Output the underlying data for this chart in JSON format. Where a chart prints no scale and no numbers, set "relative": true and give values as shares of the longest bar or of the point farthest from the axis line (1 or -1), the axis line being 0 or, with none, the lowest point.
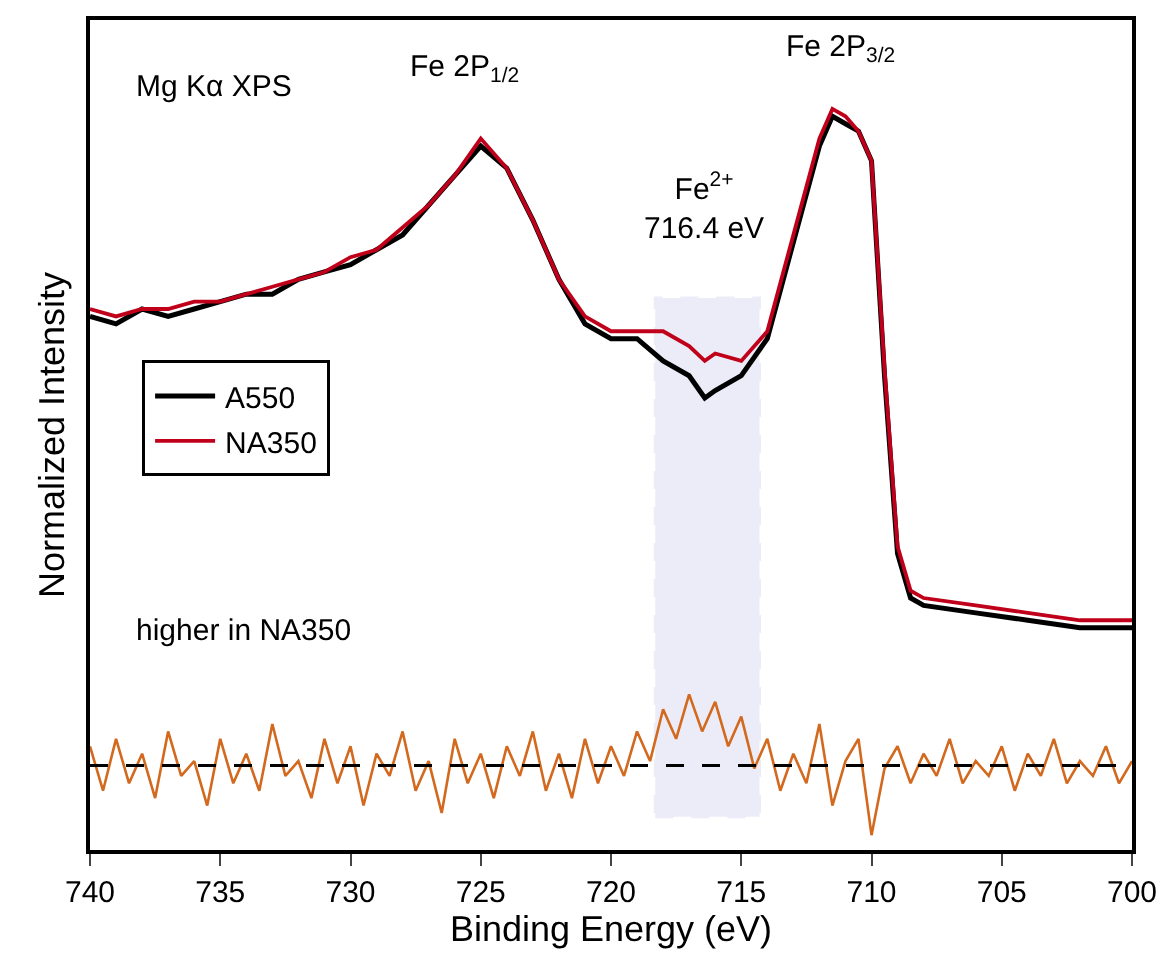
{
  "chart_data": {
    "type": "line",
    "relative": true,
    "xlabel": "Binding Energy (eV)",
    "ylabel": "Normalized Intensity",
    "xlim": [
      740,
      700
    ],
    "xticks": [
      740,
      735,
      730,
      725,
      720,
      715,
      710,
      705,
      700
    ],
    "grid": false,
    "legend": "left",
    "marker": "none",
    "line_style": "solid",
    "annotations": [
      "Mg Kα XPS",
      "Fe 2P$_{1/2}$",
      "Fe 2P$_{3/2}$",
      "Fe$^{2+}$\n716.4 eV",
      "higher in NA350"
    ],
    "ref_lines": [
      {
        "axis": "y",
        "value": 0.114,
        "label": null,
        "color": "#000000",
        "line_style": "dashed"
      }
    ],
    "bands": [
      {
        "axis": "x",
        "from": 718.3,
        "to": 714.3,
        "label": null,
        "color": "#6a6acc"
      }
    ],
    "series": [
      {
        "name": "A550",
        "color": "#000000",
        "x": [
          740,
          739,
          738,
          737,
          736,
          735,
          734,
          733,
          732,
          731,
          730,
          729,
          728,
          727,
          726,
          725,
          724,
          723,
          722,
          721,
          720,
          719,
          718,
          717,
          716.4,
          716,
          715,
          714,
          713,
          712,
          711.5,
          711,
          710.5,
          710,
          709.5,
          709,
          708.5,
          708,
          706,
          704,
          702,
          700
        ],
        "values": [
          0.72,
          0.71,
          0.73,
          0.72,
          0.73,
          0.74,
          0.75,
          0.75,
          0.77,
          0.78,
          0.79,
          0.81,
          0.83,
          0.87,
          0.91,
          0.95,
          0.92,
          0.85,
          0.77,
          0.71,
          0.69,
          0.69,
          0.66,
          0.64,
          0.61,
          0.62,
          0.64,
          0.69,
          0.82,
          0.95,
          0.99,
          0.98,
          0.97,
          0.93,
          0.64,
          0.4,
          0.34,
          0.33,
          0.32,
          0.31,
          0.3,
          0.3
        ]
      },
      {
        "name": "NA350",
        "color": "#c0001a",
        "x": [
          740,
          739,
          738,
          737,
          736,
          735,
          734,
          733,
          732,
          731,
          730,
          729,
          728,
          727,
          726,
          725,
          724,
          723,
          722,
          721,
          720,
          719,
          718,
          717,
          716.4,
          716,
          715,
          714,
          713,
          712,
          711.5,
          711,
          710.5,
          710,
          709.5,
          709,
          708.5,
          708,
          706,
          704,
          702,
          700
        ],
        "values": [
          0.73,
          0.72,
          0.73,
          0.73,
          0.74,
          0.74,
          0.75,
          0.76,
          0.77,
          0.78,
          0.8,
          0.81,
          0.84,
          0.87,
          0.91,
          0.96,
          0.92,
          0.85,
          0.77,
          0.72,
          0.7,
          0.7,
          0.7,
          0.68,
          0.66,
          0.67,
          0.66,
          0.7,
          0.83,
          0.96,
          1.0,
          0.99,
          0.97,
          0.93,
          0.65,
          0.41,
          0.35,
          0.34,
          0.33,
          0.32,
          0.31,
          0.31
        ]
      },
      {
        "color": "#d2691e",
        "x": [
          740,
          739.5,
          739,
          738.5,
          738,
          737.5,
          737,
          736.5,
          736,
          735.5,
          735,
          734.5,
          734,
          733.5,
          733,
          732.5,
          732,
          731.5,
          731,
          730.5,
          730,
          729.5,
          729,
          728.5,
          728,
          727.5,
          727,
          726.5,
          726,
          725.5,
          725,
          724.5,
          724,
          723.5,
          723,
          722.5,
          722,
          721.5,
          721,
          720.5,
          720,
          719.5,
          719,
          718.5,
          718,
          717.5,
          717,
          716.5,
          716,
          715.5,
          715,
          714.5,
          714,
          713.5,
          713,
          712.5,
          712,
          711.5,
          711,
          710.5,
          710,
          709.5,
          709,
          708.5,
          708,
          707.5,
          707,
          706.5,
          706,
          705.5,
          705,
          704.5,
          704,
          703.5,
          703,
          702.5,
          702,
          701.5,
          701,
          700.5,
          700
        ],
        "values": [
          0.14,
          0.08,
          0.15,
          0.09,
          0.13,
          0.07,
          0.16,
          0.1,
          0.12,
          0.06,
          0.15,
          0.09,
          0.13,
          0.08,
          0.17,
          0.1,
          0.12,
          0.07,
          0.15,
          0.09,
          0.14,
          0.06,
          0.13,
          0.1,
          0.16,
          0.08,
          0.12,
          0.05,
          0.15,
          0.09,
          0.13,
          0.07,
          0.14,
          0.1,
          0.16,
          0.08,
          0.13,
          0.07,
          0.15,
          0.09,
          0.14,
          0.1,
          0.16,
          0.12,
          0.19,
          0.15,
          0.21,
          0.16,
          0.2,
          0.14,
          0.18,
          0.11,
          0.15,
          0.08,
          0.13,
          0.09,
          0.17,
          0.06,
          0.12,
          0.15,
          0.02,
          0.11,
          0.14,
          0.09,
          0.13,
          0.1,
          0.15,
          0.09,
          0.12,
          0.1,
          0.14,
          0.08,
          0.13,
          0.1,
          0.15,
          0.09,
          0.12,
          0.1,
          0.14,
          0.09,
          0.12
        ]
      }
    ]
  }
}
